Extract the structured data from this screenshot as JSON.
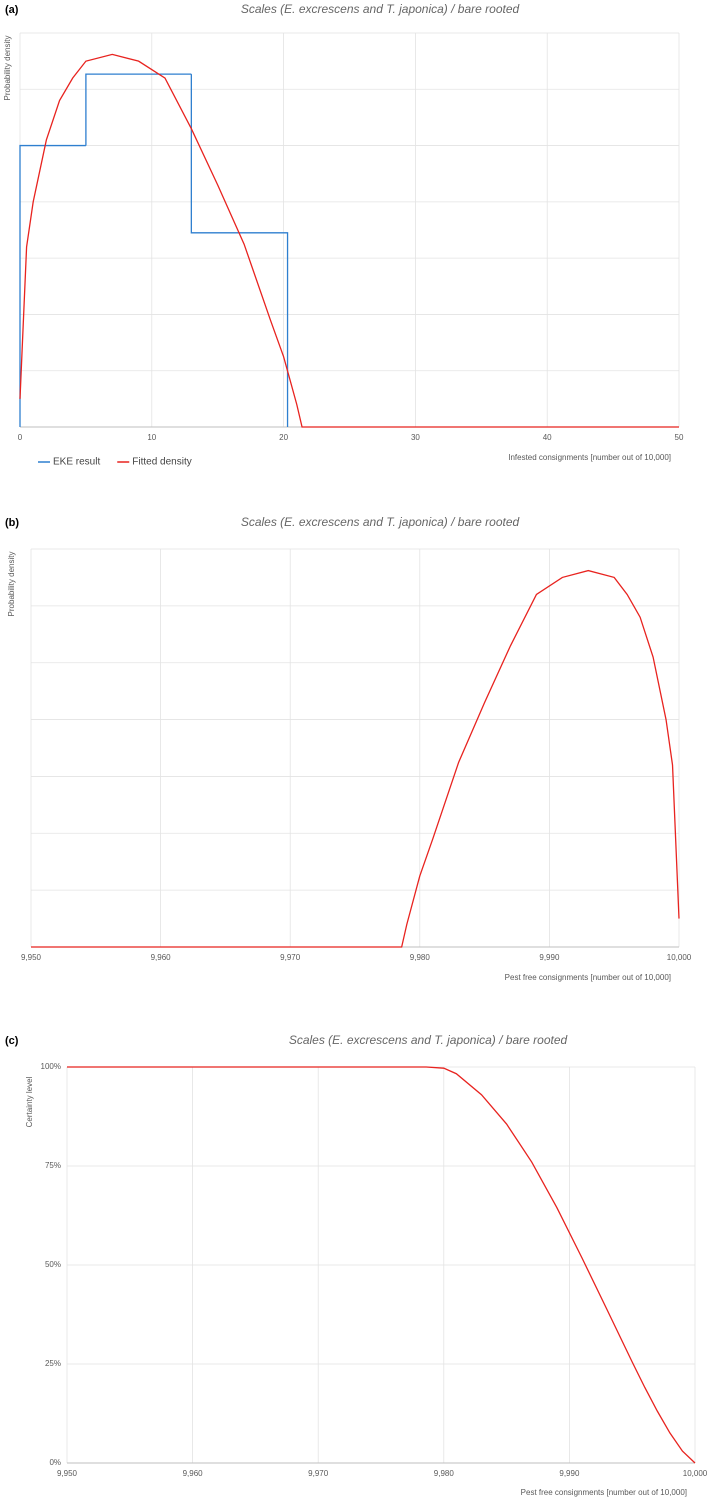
{
  "chart_data": [
    {
      "type": "histogram",
      "panel": "(a)",
      "title": "Scales (E. excrescens and T. japonica)  / bare rooted",
      "x_label": "Infested consignments [number out of 10,000]",
      "y_label": "Probability density",
      "xlim": [
        0,
        50
      ],
      "xticks": [
        0,
        10,
        20,
        30,
        40,
        50
      ],
      "ylim": [
        0,
        0.07
      ],
      "yticks": [
        0,
        0.01,
        0.02,
        0.03,
        0.04,
        0.05,
        0.06,
        0.07
      ],
      "ytick_labels": false,
      "grid": true,
      "legend": "bottom-left",
      "series": [
        {
          "name": "EKE result",
          "type": "histogram",
          "color": "#2e7fcf",
          "bins": [
            0,
            5,
            13,
            20.3
          ],
          "values": [
            0.05,
            0.0627,
            0.0345
          ]
        },
        {
          "name": "Fitted density",
          "type": "line",
          "color": "#e8231f",
          "x": [
            0,
            0.5,
            1,
            2,
            3,
            4,
            5,
            7,
            9,
            11,
            13,
            15,
            17,
            19,
            20,
            21,
            21.4,
            50
          ],
          "values": [
            0.005,
            0.032,
            0.04,
            0.051,
            0.058,
            0.062,
            0.065,
            0.0662,
            0.065,
            0.062,
            0.053,
            0.043,
            0.0325,
            0.019,
            0.0125,
            0.004,
            0,
            0
          ]
        }
      ]
    },
    {
      "type": "line",
      "panel": "(b)",
      "title": "Scales (E. excrescens and T. japonica)  / bare rooted",
      "x_label": "Pest free consignments [number out of 10,000]",
      "y_label": "Probability density",
      "xlim": [
        9950,
        10000
      ],
      "xticks": [
        {
          "value": 9950,
          "label": "9,950"
        },
        {
          "value": 9960,
          "label": "9,960"
        },
        {
          "value": 9970,
          "label": "9,970"
        },
        {
          "value": 9980,
          "label": "9,980"
        },
        {
          "value": 9990,
          "label": "9,990"
        },
        {
          "value": 10000,
          "label": "10,000"
        }
      ],
      "ylim": [
        0,
        0.07
      ],
      "yticks": [
        0,
        0.01,
        0.02,
        0.03,
        0.04,
        0.05,
        0.06,
        0.07
      ],
      "ytick_labels": false,
      "grid": true,
      "series": [
        {
          "color": "#e8231f",
          "x": [
            9950,
            9978.6,
            9979,
            9980,
            9981,
            9983,
            9985,
            9987,
            9989,
            9991,
            9993,
            9995,
            9996,
            9997,
            9998,
            9999,
            9999.5,
            10000
          ],
          "values": [
            0,
            0,
            0.004,
            0.0125,
            0.019,
            0.0325,
            0.043,
            0.053,
            0.062,
            0.065,
            0.0662,
            0.065,
            0.062,
            0.058,
            0.051,
            0.04,
            0.032,
            0.005
          ]
        }
      ]
    },
    {
      "type": "line",
      "panel": "(c)",
      "title": "Scales (E. excrescens and T. japonica)  / bare rooted",
      "x_label": "Pest free consignments [number out of 10,000]",
      "y_label": "Certainty level",
      "xlim": [
        9950,
        10000
      ],
      "xticks": [
        {
          "value": 9950,
          "label": "9,950"
        },
        {
          "value": 9960,
          "label": "9,960"
        },
        {
          "value": 9970,
          "label": "9,970"
        },
        {
          "value": 9980,
          "label": "9,980"
        },
        {
          "value": 9990,
          "label": "9,990"
        },
        {
          "value": 10000,
          "label": "10,000"
        }
      ],
      "ylim": [
        0,
        100
      ],
      "yticks": [
        {
          "value": 0,
          "label": "0%"
        },
        {
          "value": 25,
          "label": "25%"
        },
        {
          "value": 50,
          "label": "50%"
        },
        {
          "value": 75,
          "label": "75%"
        },
        {
          "value": 100,
          "label": "100%"
        }
      ],
      "grid": true,
      "series": [
        {
          "color": "#e8231f",
          "x": [
            9950,
            9978.6,
            9980,
            9981,
            9983,
            9985,
            9987,
            9989,
            9991,
            9993,
            9995,
            9996,
            9997,
            9998,
            9999,
            10000
          ],
          "values": [
            100,
            100,
            99.7,
            98.3,
            93,
            85.6,
            76,
            64.5,
            51.8,
            38.7,
            25.5,
            19.1,
            13.1,
            7.6,
            3,
            0
          ]
        }
      ]
    }
  ]
}
